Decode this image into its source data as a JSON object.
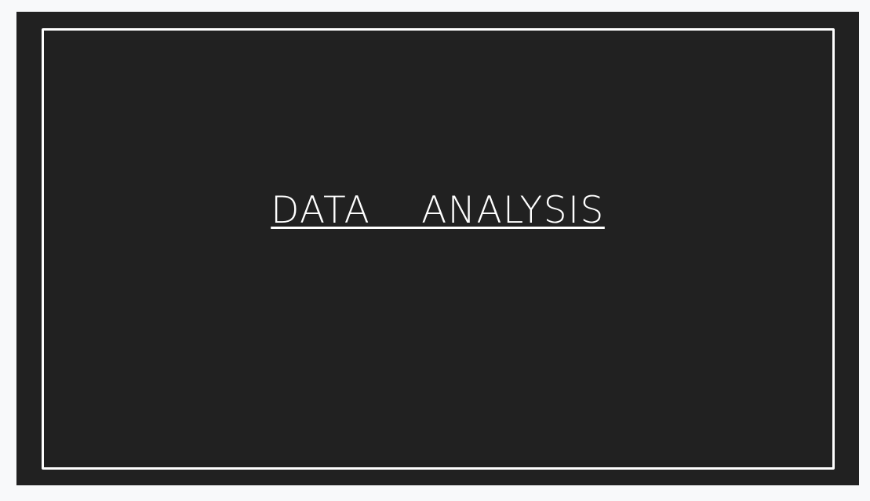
{
  "slide": {
    "title": "DATA  ANALYSIS",
    "background_color": "#212121",
    "frame_color": "#ffffff",
    "text_color": "#ffffff"
  }
}
